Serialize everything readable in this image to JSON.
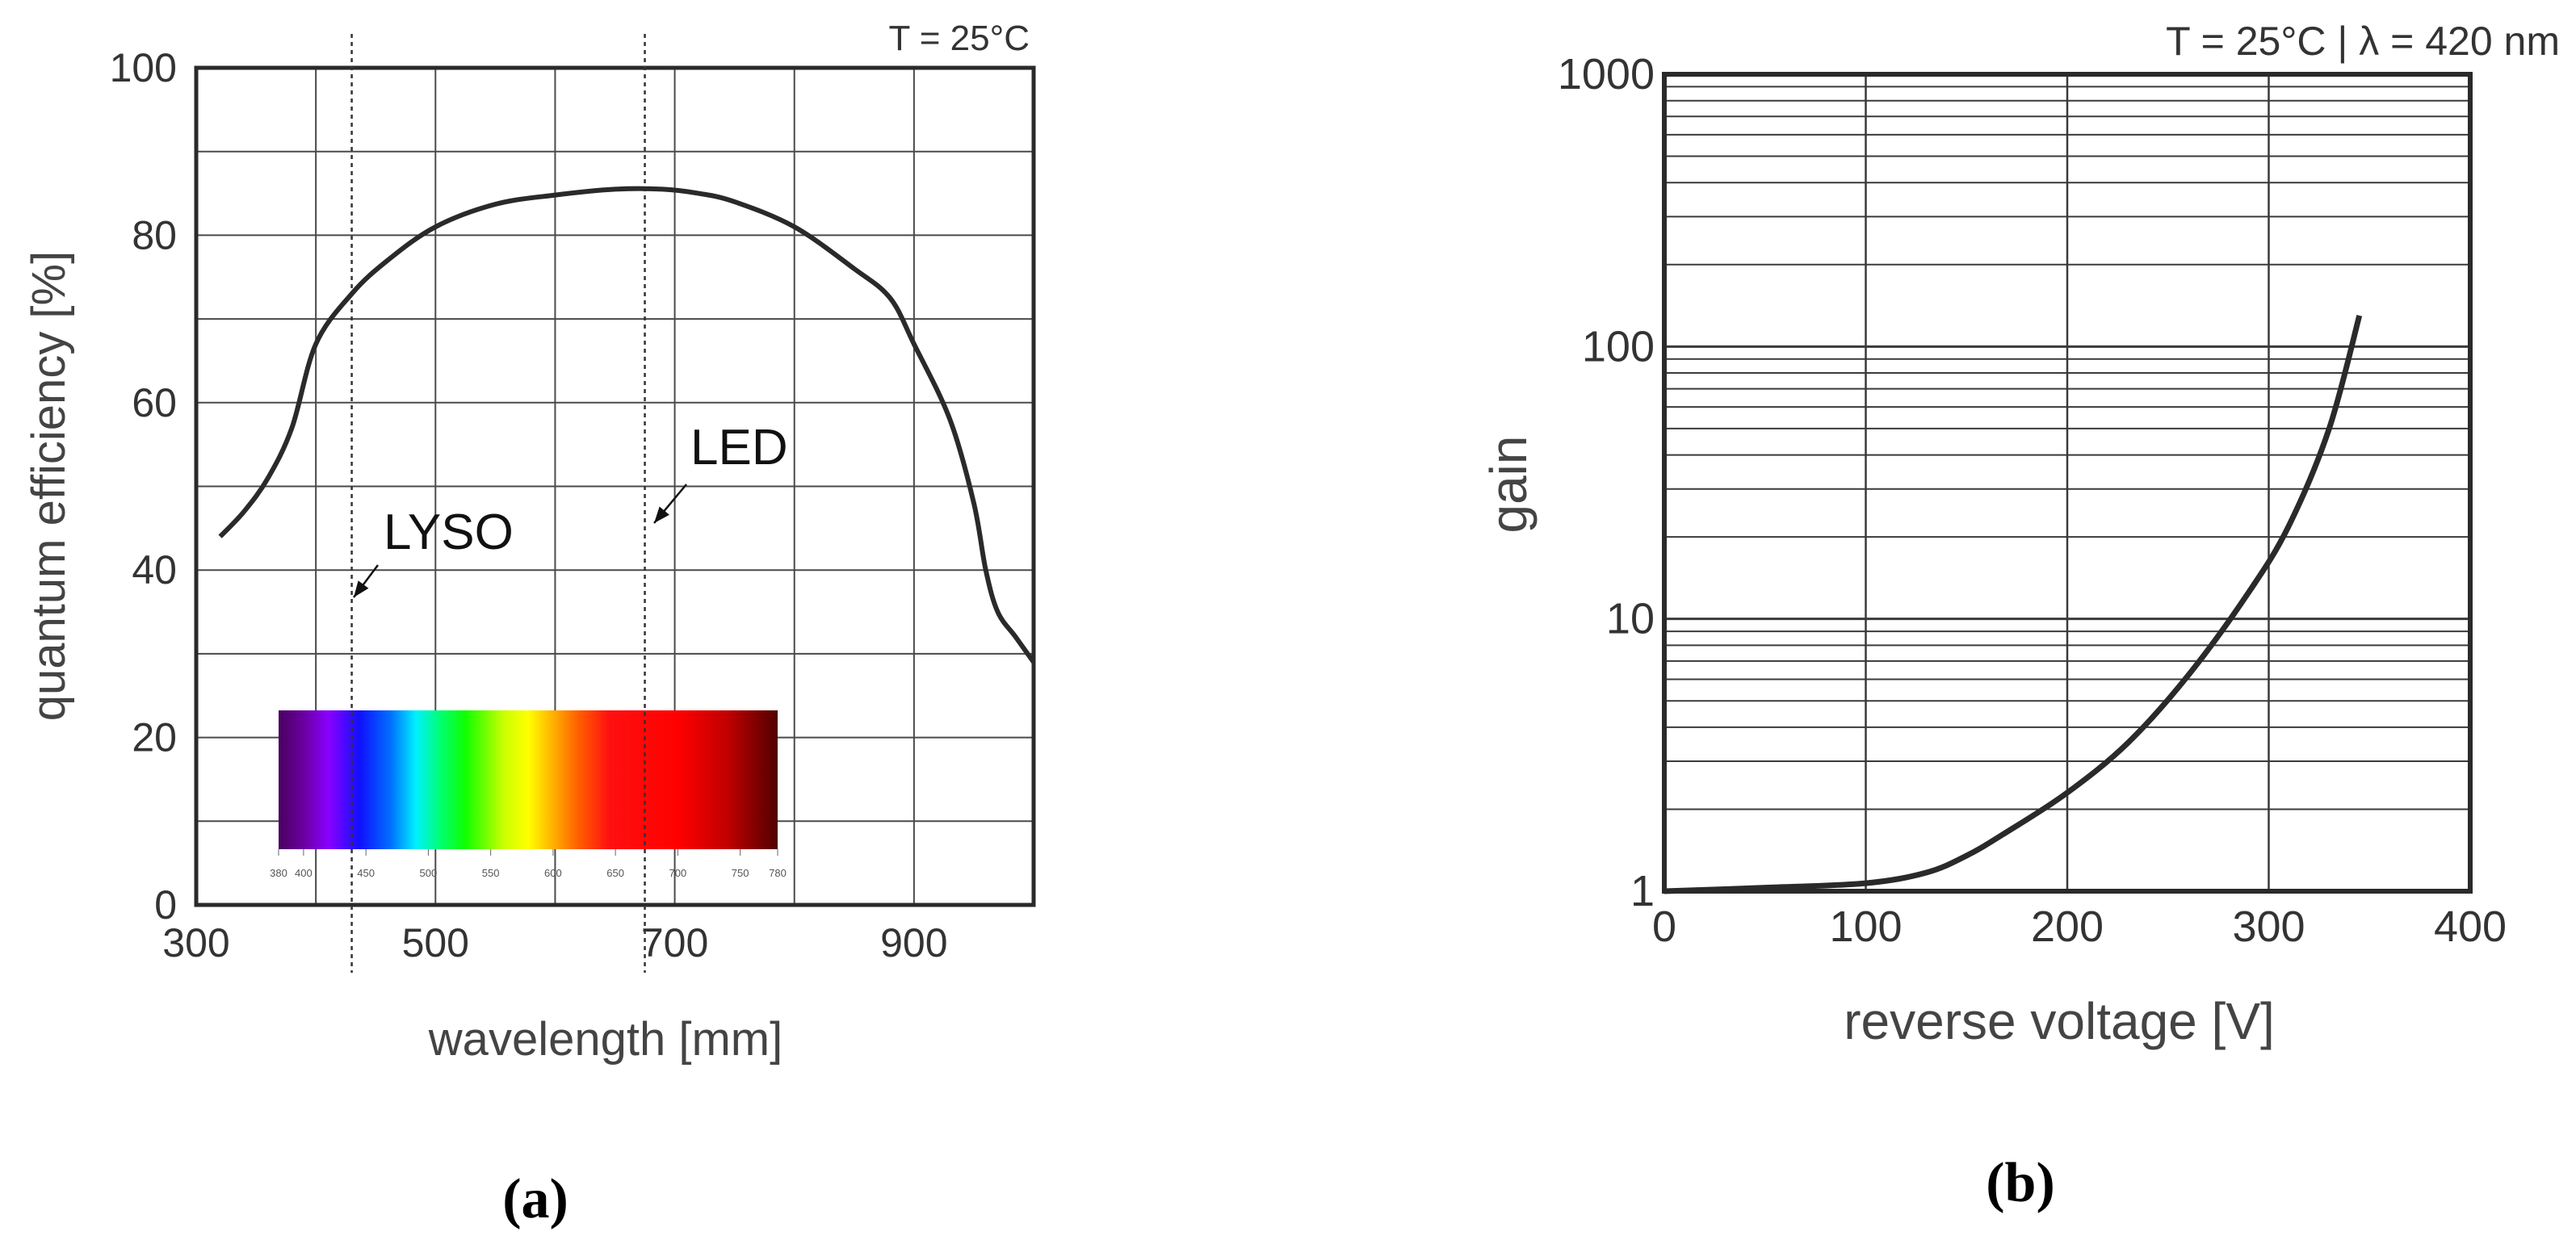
{
  "chart_data": [
    {
      "panel": "(a)",
      "type": "line",
      "title": "",
      "condition": "T = 25°C",
      "xlabel": "wavelength [mm]",
      "ylabel": "quantum efficiency [%]",
      "xlim": [
        300,
        1000
      ],
      "ylim": [
        0,
        100
      ],
      "x_ticks": [
        300,
        500,
        700,
        900
      ],
      "y_ticks": [
        0,
        20,
        40,
        60,
        80,
        100
      ],
      "grid": true,
      "series": [
        {
          "x": [
            320,
            340,
            360,
            380,
            400,
            430,
            460,
            500,
            550,
            600,
            650,
            690,
            720,
            750,
            800,
            850,
            880,
            900,
            930,
            950,
            960,
            970,
            985,
            1000
          ],
          "y": [
            44,
            47,
            51,
            57,
            67,
            73,
            77,
            81,
            83.7,
            84.8,
            85.5,
            85.5,
            85,
            84,
            81,
            76,
            72.5,
            67,
            58,
            48,
            40,
            35,
            32,
            29
          ]
        }
      ],
      "markers": [
        {
          "label": "LYSO",
          "x": 430
        },
        {
          "label": "LED",
          "x": 675
        }
      ],
      "spectrum_inset": {
        "tick_labels": [
          "380",
          "400",
          "450",
          "500",
          "550",
          "600",
          "650",
          "700",
          "750",
          "780"
        ],
        "stops": [
          {
            "wl": 380,
            "color": "#4a0060"
          },
          {
            "wl": 400,
            "color": "#6a00a0"
          },
          {
            "wl": 420,
            "color": "#8a00ff"
          },
          {
            "wl": 445,
            "color": "#1010ff"
          },
          {
            "wl": 470,
            "color": "#0070ff"
          },
          {
            "wl": 490,
            "color": "#00f0ff"
          },
          {
            "wl": 510,
            "color": "#00ff70"
          },
          {
            "wl": 530,
            "color": "#10ff00"
          },
          {
            "wl": 560,
            "color": "#c8ff00"
          },
          {
            "wl": 580,
            "color": "#ffff00"
          },
          {
            "wl": 600,
            "color": "#ffb000"
          },
          {
            "wl": 620,
            "color": "#ff6000"
          },
          {
            "wl": 645,
            "color": "#ff1010"
          },
          {
            "wl": 700,
            "color": "#ff0000"
          },
          {
            "wl": 740,
            "color": "#c00000"
          },
          {
            "wl": 780,
            "color": "#500000"
          }
        ]
      }
    },
    {
      "panel": "(b)",
      "type": "line",
      "title": "",
      "condition": "T = 25°C | λ = 420 nm",
      "xlabel": "reverse voltage [V]",
      "ylabel": "gain",
      "xlim": [
        0,
        400
      ],
      "ylim": [
        1,
        1000
      ],
      "yscale": "log",
      "x_ticks": [
        0,
        100,
        200,
        300,
        400
      ],
      "y_ticks": [
        1,
        10,
        100,
        1000
      ],
      "grid": true,
      "series": [
        {
          "x": [
            0,
            50,
            100,
            130,
            150,
            170,
            200,
            230,
            260,
            290,
            310,
            330,
            345
          ],
          "y": [
            1,
            1.03,
            1.07,
            1.17,
            1.35,
            1.65,
            2.3,
            3.5,
            6.2,
            12.5,
            22,
            50,
            130
          ]
        }
      ]
    }
  ]
}
